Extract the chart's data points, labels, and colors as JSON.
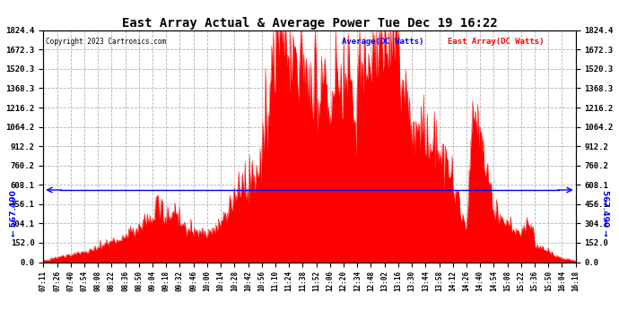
{
  "title": "East Array Actual & Average Power Tue Dec 19 16:22",
  "copyright": "Copyright 2023 Cartronics.com",
  "legend_avg": "Average(DC Watts)",
  "legend_east": "East Array(DC Watts)",
  "avg_value": 567.49,
  "avg_label": "567.490",
  "yticks": [
    0.0,
    152.0,
    304.1,
    456.1,
    608.1,
    760.2,
    912.2,
    1064.2,
    1216.2,
    1368.3,
    1520.3,
    1672.3,
    1824.4
  ],
  "ymax": 1824.4,
  "ymin": 0.0,
  "fill_color": "#ff0000",
  "avg_line_color": "#0000ff",
  "background_color": "#ffffff",
  "grid_color": "#aaaaaa",
  "title_color": "#000000",
  "copyright_color": "#000000",
  "xtick_labels": [
    "07:11",
    "07:26",
    "07:40",
    "07:54",
    "08:08",
    "08:22",
    "08:36",
    "08:50",
    "09:04",
    "09:18",
    "09:32",
    "09:46",
    "10:00",
    "10:14",
    "10:28",
    "10:42",
    "10:56",
    "11:10",
    "11:24",
    "11:38",
    "11:52",
    "12:06",
    "12:20",
    "12:34",
    "12:48",
    "13:02",
    "13:16",
    "13:30",
    "13:44",
    "13:58",
    "14:12",
    "14:26",
    "14:40",
    "14:54",
    "15:08",
    "15:22",
    "15:36",
    "15:50",
    "16:04",
    "16:18"
  ]
}
